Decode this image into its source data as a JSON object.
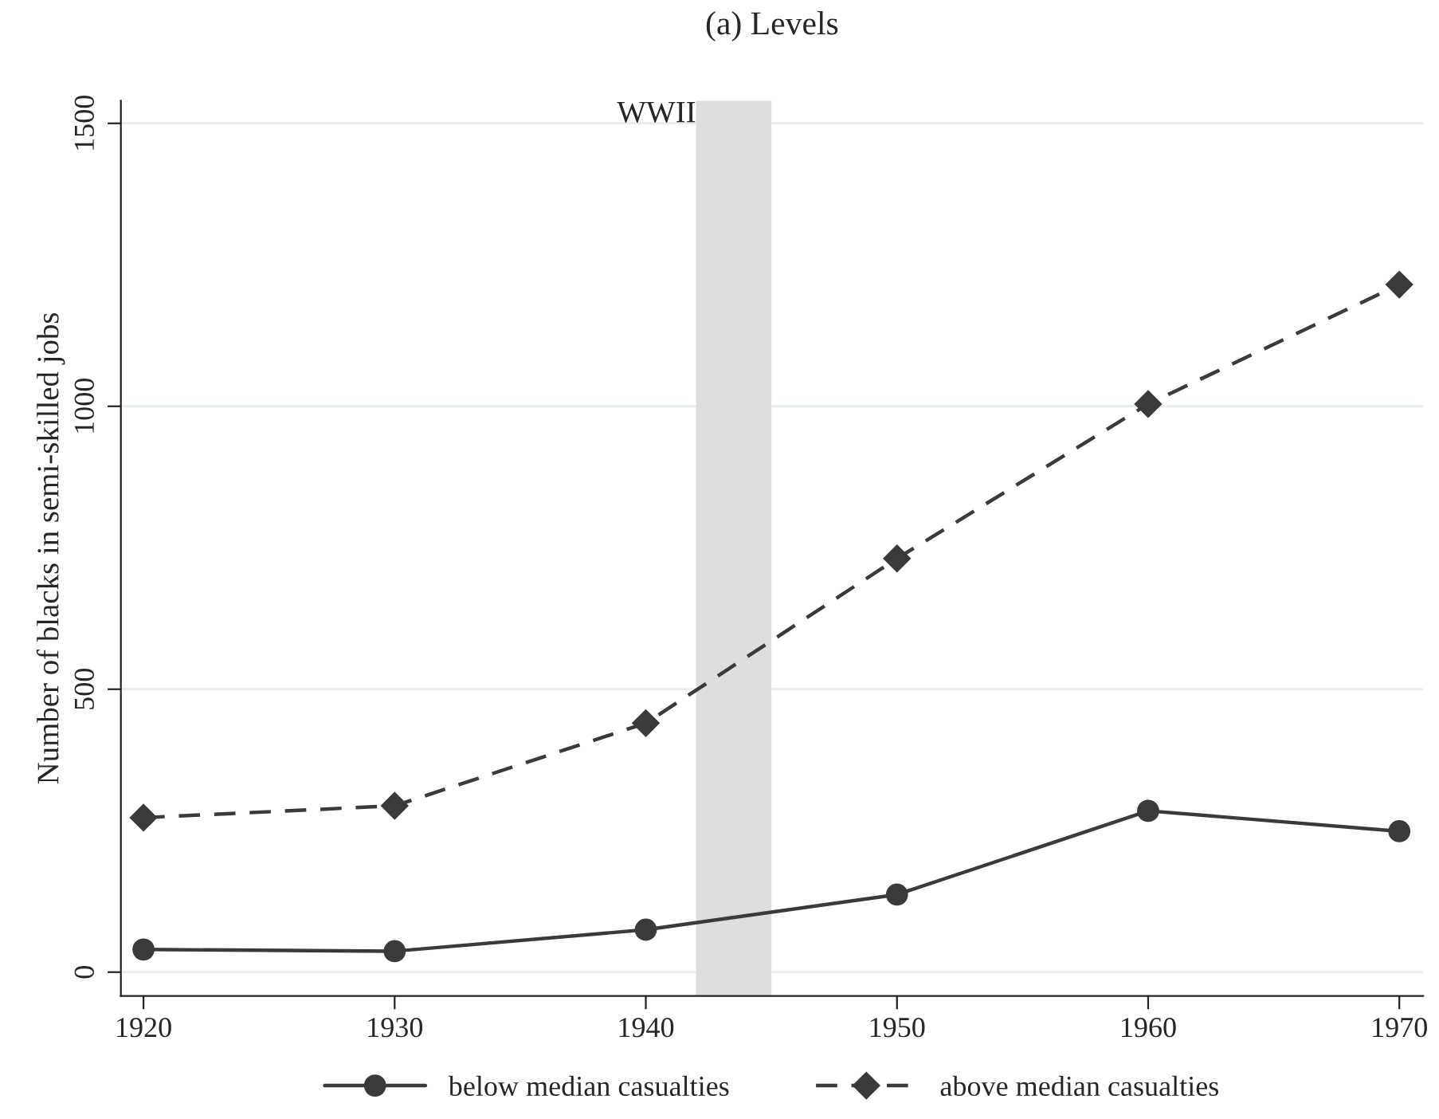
{
  "chart_data": {
    "type": "line",
    "title": "(a) Levels",
    "ylabel": "Number of blacks in semi-skilled jobs",
    "x": [
      1920,
      1930,
      1940,
      1950,
      1960,
      1970
    ],
    "series": [
      {
        "name": "below median casualties",
        "color": "#3a3a3a",
        "values": [
          40,
          37,
          75,
          137,
          285,
          249
        ],
        "marker": "circle",
        "line_style": "solid"
      },
      {
        "name": "above median casualties",
        "color": "#3a3a3a",
        "values": [
          273,
          294,
          440,
          731,
          1004,
          1215
        ],
        "marker": "diamond",
        "line_style": "dashed"
      }
    ],
    "xlim": [
      1919.1,
      1970.95
    ],
    "xticks": [
      1920,
      1930,
      1940,
      1950,
      1960,
      1970
    ],
    "ylim": [
      -42,
      1540
    ],
    "yticks": [
      0,
      500,
      1000,
      1500
    ],
    "bands": [
      {
        "axis": "x",
        "from": 1942,
        "to": 1945,
        "label": "WWII",
        "color": "#dedede"
      }
    ],
    "grid": "y",
    "legend": "bottom"
  }
}
